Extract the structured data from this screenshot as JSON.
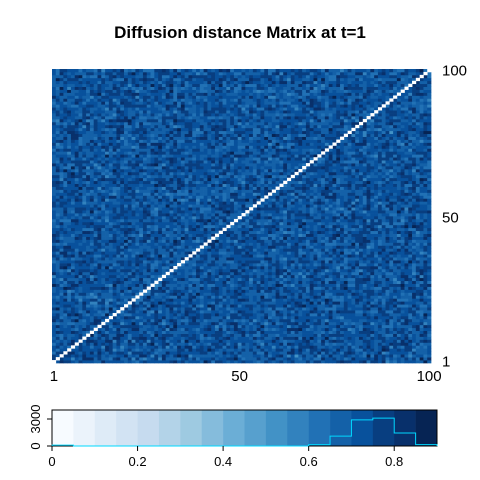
{
  "chart_data": [
    {
      "type": "heatmap",
      "title": "Diffusion distance Matrix at t=1",
      "xlabel": "",
      "ylabel": "",
      "n": 100,
      "xlim": [
        1,
        100
      ],
      "ylim": [
        1,
        100
      ],
      "x_ticks": [
        1,
        50,
        100
      ],
      "y_ticks": [
        1,
        50,
        100
      ],
      "x_tick_labels": [
        "1",
        "50",
        "100"
      ],
      "y_tick_labels": [
        "1",
        "50",
        "100"
      ],
      "y_axis_side": "right",
      "diagonal_value": 0,
      "off_diagonal_mean": 0.72,
      "off_diagonal_spread": 0.12,
      "value_range": [
        0,
        0.9
      ],
      "diagonal_color": "#ffffff"
    },
    {
      "type": "bar",
      "role": "color-key-histogram",
      "xlim": [
        0,
        0.9
      ],
      "ylim": [
        0,
        4000
      ],
      "x_ticks": [
        0,
        0.2,
        0.4,
        0.6,
        0.8
      ],
      "x_tick_labels": [
        "0",
        "0.2",
        "0.4",
        "0.6",
        "0.8"
      ],
      "y_ticks": [
        0,
        3000
      ],
      "y_tick_labels": [
        "0",
        "3000"
      ],
      "bin_edges": [
        0,
        0.05,
        0.1,
        0.15,
        0.2,
        0.25,
        0.3,
        0.35,
        0.4,
        0.45,
        0.5,
        0.55,
        0.6,
        0.65,
        0.7,
        0.75,
        0.8,
        0.85,
        0.9
      ],
      "bin_colors": [
        "#f7fbff",
        "#ebf3fb",
        "#deebf7",
        "#d2e3f3",
        "#c6dbef",
        "#b3d3e8",
        "#9ecae1",
        "#85bcdc",
        "#6baed6",
        "#57a0ce",
        "#4292c6",
        "#3282be",
        "#2171b5",
        "#1461a8",
        "#08519c",
        "#083e80",
        "#08306b",
        "#062454"
      ],
      "counts": [
        100,
        0,
        0,
        0,
        0,
        0,
        0,
        0,
        0,
        0,
        0,
        0,
        150,
        1100,
        2900,
        3100,
        1450,
        150
      ],
      "line_color": "#00d8ff"
    }
  ]
}
